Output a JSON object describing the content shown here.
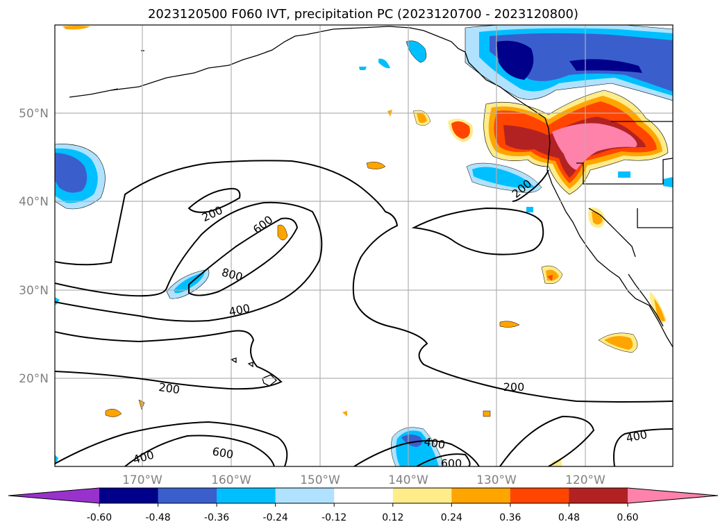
{
  "title": "2023120500 F060 IVT, precipitation PC (2023120700 - 2023120800)",
  "lat_labels": [
    "50°N",
    "40°N",
    "30°N",
    "20°N"
  ],
  "lon_labels": [
    "170°W",
    "160°W",
    "150°W",
    "140°W",
    "130°W",
    "120°W"
  ],
  "contour_labels": [
    "200",
    "600",
    "800",
    "400",
    "200",
    "200",
    "400",
    "600",
    "400",
    "400",
    "600"
  ],
  "colorbar": {
    "ticks": [
      "-0.60",
      "-0.48",
      "-0.36",
      "-0.24",
      "-0.12",
      "0.12",
      "0.24",
      "0.36",
      "0.48",
      "0.60"
    ],
    "colors": [
      "#9932cc",
      "#00008b",
      "#3a5fcd",
      "#00bfff",
      "#b0e2ff",
      "#ffffff",
      "#ffec8b",
      "#ffa500",
      "#ff4500",
      "#b22222",
      "#ff82ab"
    ]
  }
}
